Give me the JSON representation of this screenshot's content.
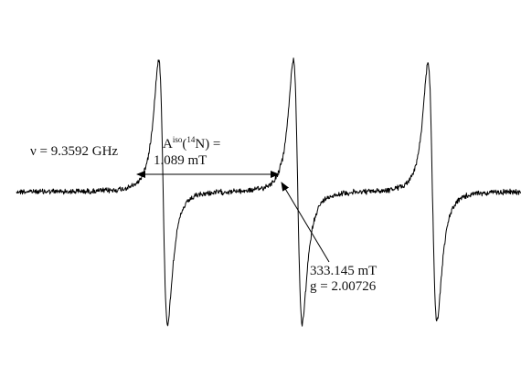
{
  "chart_data": {
    "type": "line",
    "title": "",
    "xlabel": "",
    "ylabel": "",
    "grid": false,
    "legend": "none",
    "line_color": "#000000",
    "annotations": {
      "frequency_label": "ν = 9.3592 GHz",
      "hyperfine_label_main": "A",
      "hyperfine_label_sup": "iso",
      "hyperfine_label_paren_open": "(",
      "hyperfine_label_isotope_sup": "14",
      "hyperfine_label_element": "N) =",
      "hyperfine_value": "1.089 mT",
      "center_field": "333.145 mT",
      "g_value": "g = 2.00726"
    },
    "hyperfine_splitting_mT": 1.089,
    "center_field_mT": 333.145,
    "g_factor": 2.00726,
    "microwave_frequency_GHz": 9.3592,
    "series": [
      {
        "lines": [
          {
            "center_mT": 332.056,
            "relative_amplitude": 1.0
          },
          {
            "center_mT": 333.145,
            "relative_amplitude": 1.0
          },
          {
            "center_mT": 334.234,
            "relative_amplitude": 0.98
          }
        ]
      }
    ]
  }
}
